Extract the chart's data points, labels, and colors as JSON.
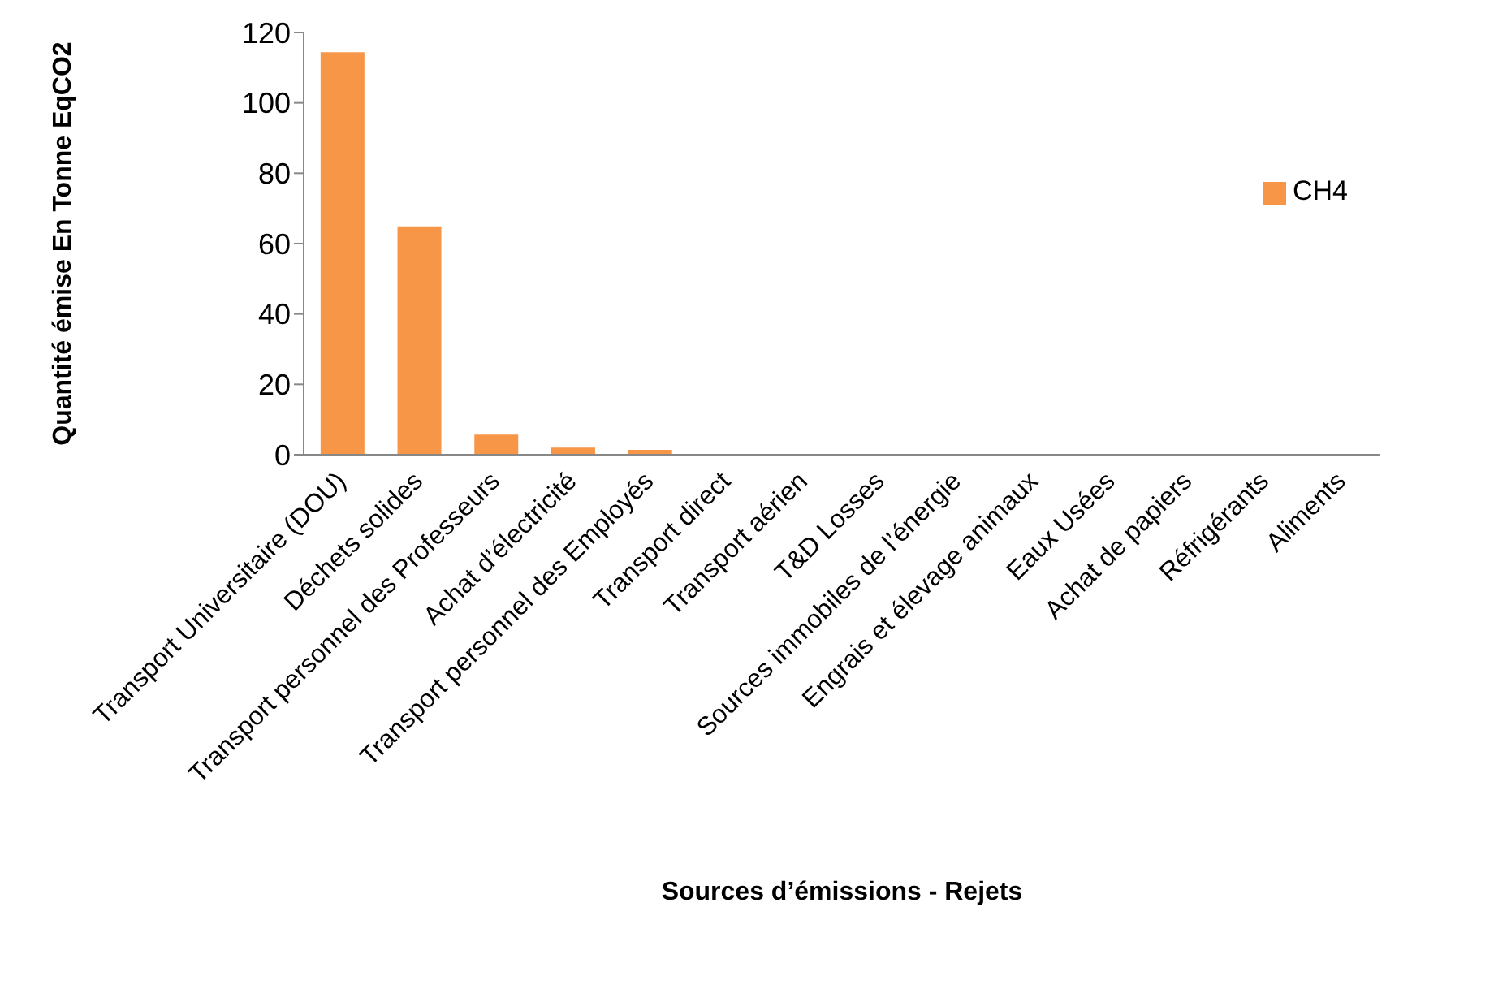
{
  "chart_data": {
    "type": "bar",
    "xlabel": "Sources d’émissions - Rejets",
    "ylabel": "Quantité émise En Tonne EqCO2",
    "categories": [
      "Transport Universitaire (DOU)",
      "Déchets solides",
      "Transport personnel des Professeurs",
      "Achat d’électricité",
      "Transport personnel des Employés",
      "Transport direct",
      "Transport aérien",
      "T&D Losses",
      "Sources immobiles de l’énergie",
      "Engrais et élevage animaux",
      "Eaux Usées",
      "Achat de papiers",
      "Réfrigérants",
      "Aliments"
    ],
    "series": [
      {
        "name": "CH4",
        "color": "#f79646",
        "values": [
          114.4,
          64.9,
          5.7,
          2.0,
          1.4,
          0,
          0,
          0,
          0,
          0,
          0,
          0,
          0,
          0
        ]
      }
    ],
    "ylim": [
      0,
      120
    ],
    "yticks": [
      0,
      20,
      40,
      60,
      80,
      100,
      120
    ],
    "grid": false,
    "legend": "right"
  }
}
